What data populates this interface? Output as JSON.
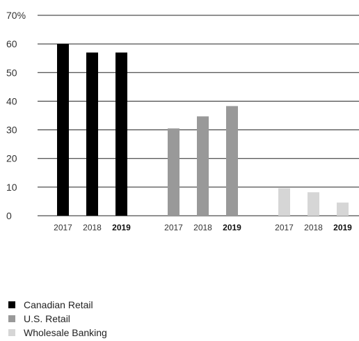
{
  "chart_data": {
    "type": "bar",
    "title": "",
    "xlabel": "",
    "ylabel": "",
    "y_unit_label": "70%",
    "ylim": [
      0,
      70
    ],
    "y_ticks": [
      0,
      10,
      20,
      30,
      40,
      50,
      60,
      70
    ],
    "y_tick_labels": [
      "0",
      "10",
      "20",
      "30",
      "40",
      "50",
      "60",
      "70%"
    ],
    "grid": true,
    "legend_position": "bottom-left",
    "groups": [
      {
        "name": "Canadian Retail",
        "color": "#000000",
        "bars": [
          {
            "year": "2017",
            "value": 60,
            "bold": false
          },
          {
            "year": "2018",
            "value": 57,
            "bold": false
          },
          {
            "year": "2019",
            "value": 57,
            "bold": true
          }
        ]
      },
      {
        "name": "U.S. Retail",
        "color": "#999999",
        "bars": [
          {
            "year": "2017",
            "value": 30.5,
            "bold": false
          },
          {
            "year": "2018",
            "value": 34.7,
            "bold": false
          },
          {
            "year": "2019",
            "value": 38.3,
            "bold": true
          }
        ]
      },
      {
        "name": "Wholesale Banking",
        "color": "#d6d6d6",
        "bars": [
          {
            "year": "2017",
            "value": 9.6,
            "bold": false
          },
          {
            "year": "2018",
            "value": 8.2,
            "bold": false
          },
          {
            "year": "2019",
            "value": 4.6,
            "bold": true
          }
        ]
      }
    ]
  }
}
